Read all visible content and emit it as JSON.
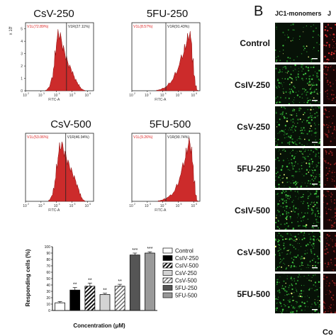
{
  "chart_data": [
    {
      "type": "area",
      "title": "CsV-250",
      "xlabel": "FITC-A",
      "ylabel": "",
      "y_multiplier": "x 10",
      "y_exponent": "1",
      "gate_labels": {
        "left": "V1L(72.89%)",
        "right": "V1R(27.11%)"
      },
      "xticks": [
        "10",
        "10",
        "10",
        "10",
        "10"
      ],
      "xtick_exponents": [
        "2",
        "3",
        "4",
        "5",
        "6"
      ],
      "yticks": [
        "0",
        "1",
        "2",
        "3",
        "4",
        "5"
      ],
      "xlim_log10": [
        2,
        6.4
      ],
      "ylim": [
        0,
        5.5
      ],
      "gate_log10": 4.65,
      "color": "#cc2b2b",
      "x_log10": [
        3.3,
        3.5,
        3.7,
        3.8,
        3.9,
        4.0,
        4.1,
        4.2,
        4.3,
        4.4,
        4.5,
        4.6,
        4.7,
        4.8,
        4.9,
        5.0,
        5.1,
        5.2,
        5.3,
        5.4,
        5.5,
        5.6,
        5.7,
        5.8
      ],
      "counts": [
        0.05,
        0.3,
        1.0,
        1.9,
        3.0,
        4.1,
        4.6,
        4.5,
        4.0,
        3.5,
        3.1,
        2.7,
        2.3,
        2.0,
        1.8,
        1.5,
        1.2,
        0.9,
        0.7,
        0.5,
        0.3,
        0.15,
        0.08,
        0.03
      ]
    },
    {
      "type": "area",
      "title": "5FU-250",
      "xlabel": "FITC-A",
      "ylabel": "",
      "y_multiplier": "",
      "y_exponent": "",
      "gate_labels": {
        "left": "V1L(8.57%)",
        "right": "V1R(91.43%)"
      },
      "xticks": [
        "10",
        "10",
        "10",
        "10",
        "10"
      ],
      "xtick_exponents": [
        "2",
        "3",
        "4",
        "5",
        "6"
      ],
      "yticks": [],
      "xlim_log10": [
        2,
        6.4
      ],
      "ylim": [
        0,
        5.5
      ],
      "gate_log10": 4.2,
      "color": "#cc2b2b",
      "x_log10": [
        3.6,
        3.8,
        4.0,
        4.2,
        4.4,
        4.6,
        4.8,
        5.0,
        5.2,
        5.3,
        5.4,
        5.5,
        5.6,
        5.7,
        5.8,
        5.9,
        6.0,
        6.1,
        6.2
      ],
      "counts": [
        0.05,
        0.1,
        0.2,
        0.35,
        0.6,
        0.9,
        1.4,
        2.0,
        2.7,
        3.0,
        3.5,
        3.9,
        4.3,
        4.6,
        4.0,
        2.5,
        1.2,
        0.4,
        0.05
      ]
    },
    {
      "type": "area",
      "title": "CsV-500",
      "xlabel": "FITC-A",
      "ylabel": "",
      "y_multiplier": "",
      "y_exponent": "",
      "gate_labels": {
        "left": "V1L(53.06%)",
        "right": "V1R(46.94%)"
      },
      "xticks": [
        "10",
        "10",
        "10",
        "10",
        "10"
      ],
      "xtick_exponents": [
        "2",
        "3",
        "4",
        "5",
        "6"
      ],
      "yticks": [],
      "xlim_log10": [
        2,
        6.4
      ],
      "ylim": [
        0,
        5.5
      ],
      "gate_log10": 4.6,
      "color": "#cc2b2b",
      "x_log10": [
        3.5,
        3.7,
        3.8,
        3.9,
        4.0,
        4.1,
        4.2,
        4.3,
        4.4,
        4.5,
        4.6,
        4.7,
        4.8,
        4.9,
        5.0,
        5.1,
        5.2,
        5.3,
        5.4,
        5.5,
        5.6,
        5.7,
        5.8
      ],
      "counts": [
        0.1,
        0.5,
        1.0,
        1.8,
        2.8,
        3.8,
        4.4,
        4.6,
        4.3,
        3.9,
        3.6,
        3.2,
        2.9,
        2.6,
        2.3,
        2.0,
        1.7,
        1.3,
        1.0,
        0.6,
        0.3,
        0.12,
        0.04
      ]
    },
    {
      "type": "area",
      "title": "5FU-500",
      "xlabel": "FITC-A",
      "ylabel": "",
      "y_multiplier": "",
      "y_exponent": "",
      "gate_labels": {
        "left": "V1L(9.26%)",
        "right": "V1R(90.74%)"
      },
      "xticks": [
        "10",
        "10",
        "10",
        "10",
        "10"
      ],
      "xtick_exponents": [
        "2",
        "3",
        "4",
        "5",
        "6"
      ],
      "yticks": [],
      "xlim_log10": [
        2,
        6.4
      ],
      "ylim": [
        0,
        5.5
      ],
      "gate_log10": 4.2,
      "color": "#cc2b2b",
      "x_log10": [
        3.7,
        3.9,
        4.1,
        4.3,
        4.5,
        4.7,
        4.9,
        5.1,
        5.3,
        5.4,
        5.5,
        5.6,
        5.7,
        5.8,
        5.9,
        6.0,
        6.1,
        6.2
      ],
      "counts": [
        0.05,
        0.1,
        0.2,
        0.35,
        0.5,
        0.8,
        1.3,
        2.1,
        2.9,
        3.4,
        4.0,
        4.5,
        4.8,
        4.2,
        3.0,
        1.6,
        0.5,
        0.05
      ]
    },
    {
      "type": "bar",
      "title": "",
      "xlabel": "Concentration (μM)",
      "ylabel": "Responding cells (%)",
      "ylim": [
        0,
        100
      ],
      "yticks": [
        "0",
        "10",
        "20",
        "30",
        "40",
        "50",
        "60",
        "70",
        "80",
        "90",
        "100"
      ],
      "categories": [
        "Control",
        "CsIV-250",
        "CsIV-500",
        "CsV-250",
        "CsV-500",
        "5FU-250",
        "5FU-500"
      ],
      "values": [
        12,
        32,
        38,
        25,
        38,
        87,
        90
      ],
      "errors": [
        2,
        4,
        5,
        2,
        3,
        3,
        2
      ],
      "significance": [
        "",
        "**",
        "**",
        "**",
        "**",
        "***",
        "***"
      ],
      "fills": [
        "#ffffff",
        "#000000",
        "hatch-dark",
        "#d4d4d4",
        "hatch-light",
        "#555555",
        "#999999"
      ]
    }
  ],
  "panel_b": {
    "letter": "B",
    "column_headers": [
      "JC1-monomers",
      "J"
    ],
    "row_labels": [
      "Control",
      "CsIV-250",
      "CsV-250",
      "5FU-250",
      "CsIV-500",
      "CsV-500",
      "5FU-500"
    ],
    "footer": "Co"
  }
}
